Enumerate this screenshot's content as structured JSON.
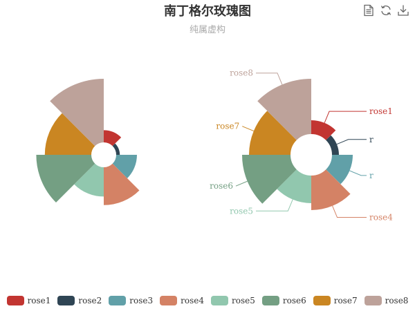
{
  "title": "南丁格尔玫瑰图",
  "subtitle": "纯属虚构",
  "toolbox": {
    "icons": [
      "data-view-icon",
      "restore-icon",
      "save-image-icon"
    ]
  },
  "colors": [
    "#c23531",
    "#2f4554",
    "#61a0a8",
    "#d48265",
    "#91c7ae",
    "#749f83",
    "#ca8622",
    "#bda29a"
  ],
  "chart_data": [
    {
      "type": "pie",
      "rose_type": "radius",
      "labels_shown": false,
      "categories": [
        "rose1",
        "rose2",
        "rose3",
        "rose4",
        "rose5",
        "rose6",
        "rose7",
        "rose8"
      ],
      "values": [
        10,
        5,
        15,
        25,
        20,
        35,
        30,
        40
      ]
    },
    {
      "type": "pie",
      "rose_type": "area",
      "labels_shown": true,
      "categories": [
        "rose1",
        "rose2",
        "rose3",
        "rose4",
        "rose5",
        "rose6",
        "rose7",
        "rose8"
      ],
      "values": [
        10,
        5,
        15,
        25,
        20,
        35,
        30,
        40
      ],
      "label_texts": [
        "rose1",
        "r",
        "r",
        "rose4",
        "rose5",
        "rose6",
        "rose7",
        "rose8"
      ]
    }
  ],
  "legend": [
    "rose1",
    "rose2",
    "rose3",
    "rose4",
    "rose5",
    "rose6",
    "rose7",
    "rose8"
  ]
}
